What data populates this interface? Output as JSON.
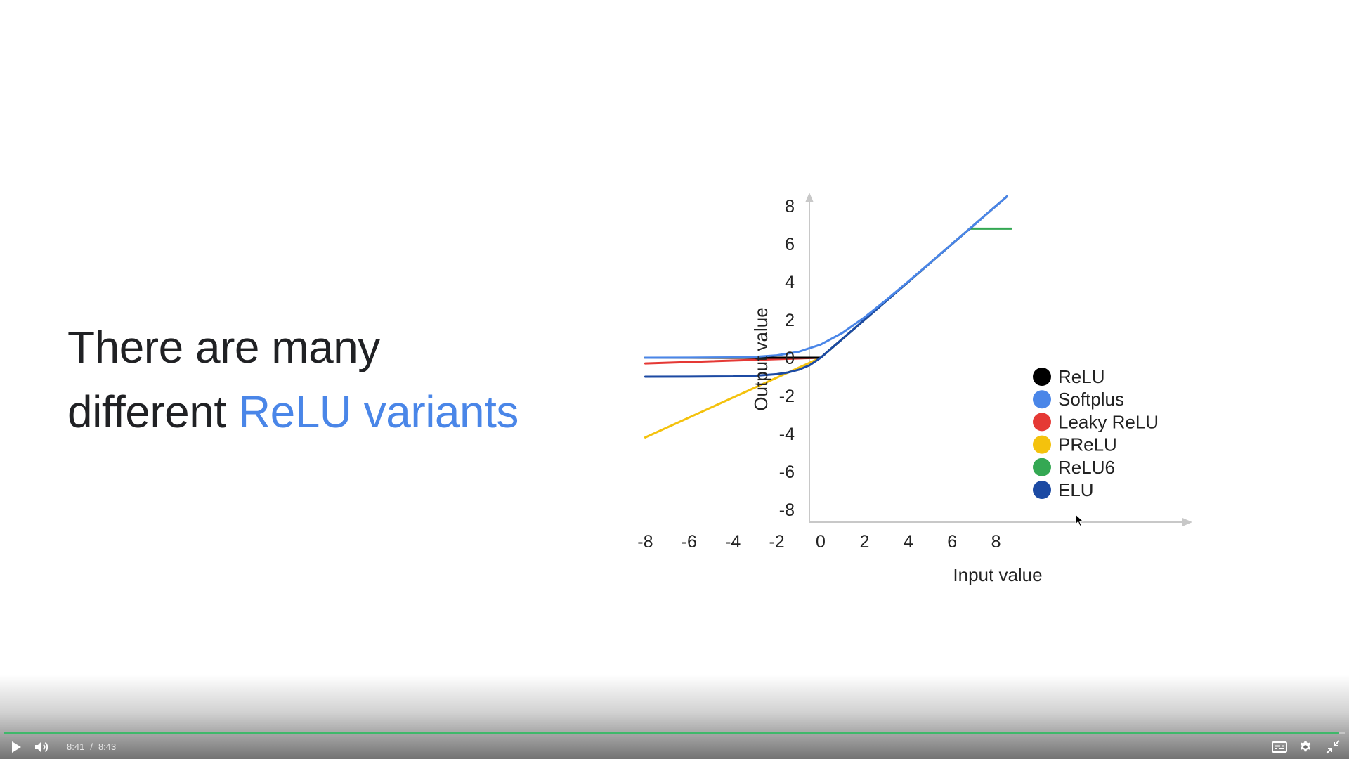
{
  "slide": {
    "headline_line1": "There are many",
    "headline_line2_plain": "different",
    "headline_line2_accent": "ReLU variants",
    "accent_color": "#4a86e8"
  },
  "chart_data": {
    "type": "line",
    "xlabel": "Input value",
    "ylabel": "Output value",
    "xlim": [
      -8,
      8
    ],
    "ylim": [
      -8,
      8
    ],
    "x_ticks": [
      "-8",
      "-6",
      "-4",
      "-2",
      "0",
      "2",
      "4",
      "6",
      "8"
    ],
    "y_ticks": [
      "8",
      "6",
      "4",
      "2",
      "0",
      "-2",
      "-4",
      "-6",
      "-8"
    ],
    "legend_position": "lower-right",
    "series": [
      {
        "name": "ReLU",
        "color": "#000000",
        "x": [
          -8,
          0,
          8.5
        ],
        "y": [
          0,
          0,
          8.5
        ]
      },
      {
        "name": "Softplus",
        "color": "#4a86e8",
        "x": [
          -8,
          -6,
          -4,
          -3,
          -2,
          -1,
          0,
          1,
          2,
          3,
          4,
          5,
          6,
          7,
          8.5
        ],
        "y": [
          0,
          0.0025,
          0.018,
          0.049,
          0.127,
          0.313,
          0.693,
          1.313,
          2.127,
          3.049,
          4.018,
          5.007,
          6.002,
          7.001,
          8.5
        ]
      },
      {
        "name": "Leaky ReLU",
        "color": "#e53935",
        "x": [
          -8,
          0
        ],
        "y": [
          -0.3,
          0
        ]
      },
      {
        "name": "PReLU",
        "color": "#f4c20d",
        "x": [
          -8,
          0
        ],
        "y": [
          -4.2,
          0
        ]
      },
      {
        "name": "ReLU6",
        "color": "#34a853",
        "x": [
          -8,
          0,
          6.8,
          8.7
        ],
        "y": [
          0,
          0,
          6.8,
          6.8
        ]
      },
      {
        "name": "ELU",
        "color": "#1c4aa3",
        "x": [
          -8,
          -6,
          -4,
          -3,
          -2,
          -1.5,
          -1,
          -0.5,
          0,
          8.5
        ],
        "y": [
          -1,
          -0.998,
          -0.982,
          -0.95,
          -0.865,
          -0.777,
          -0.632,
          -0.393,
          0,
          8.5
        ]
      }
    ]
  },
  "player": {
    "current_time": "8:41",
    "time_separator": "/",
    "duration": "8:43",
    "progress_fraction": 0.996,
    "progress_color": "#3fb86a"
  }
}
